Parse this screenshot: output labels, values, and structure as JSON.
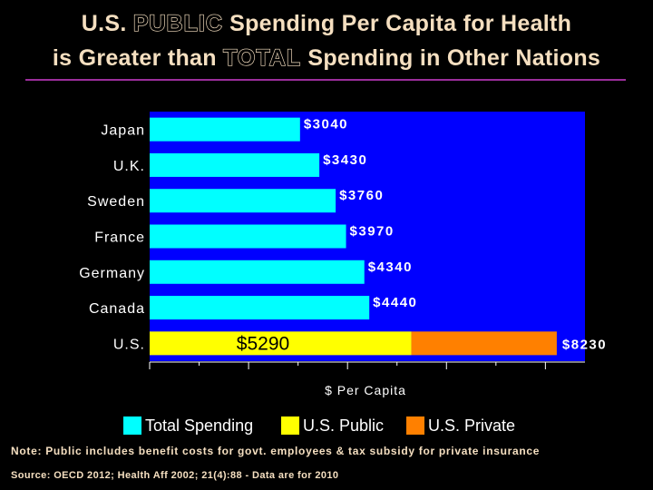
{
  "header": {
    "line1_pre": "U.S. ",
    "line1_emph": "PUBLIC",
    "line1_post": " Spending Per Capita for Health",
    "line2_pre": "is Greater than ",
    "line2_emph": "TOTAL",
    "line2_post": " Spending in Other Nations"
  },
  "colors": {
    "plot_bg": "#0000ff",
    "total": "#00ffff",
    "public": "#ffff00",
    "private": "#ff8000",
    "label": "#ffffff",
    "title": "#f5dfc0",
    "rule": "#9b2d9b"
  },
  "chart_data": {
    "type": "bar",
    "orientation": "horizontal",
    "stacked": true,
    "xlabel": "$ Per Capita",
    "xlim": [
      0,
      8800
    ],
    "categories": [
      "Japan",
      "U.K.",
      "Sweden",
      "France",
      "Germany",
      "Canada",
      "U.S."
    ],
    "series": [
      {
        "name": "Total Spending",
        "values": [
          3040,
          3430,
          3760,
          3970,
          4340,
          4440,
          null
        ]
      },
      {
        "name": "U.S. Public",
        "values": [
          null,
          null,
          null,
          null,
          null,
          null,
          5290
        ]
      },
      {
        "name": "U.S. Private",
        "values": [
          null,
          null,
          null,
          null,
          null,
          null,
          2940
        ]
      }
    ],
    "data_labels": [
      "$3040",
      "$3430",
      "$3760",
      "$3970",
      "$4340",
      "$4440",
      "$8230"
    ],
    "us_public_label": "$5290",
    "legend_position": "bottom"
  },
  "legend": {
    "total_label": "Total Spending",
    "public_label": "U.S. Public",
    "private_label": "U.S. Private"
  },
  "footer": {
    "note": "Note: Public includes benefit costs for govt. employees & tax subsidy for private insurance",
    "source": "Source: OECD 2012; Health Aff 2002; 21(4):88 - Data are for 2010"
  }
}
